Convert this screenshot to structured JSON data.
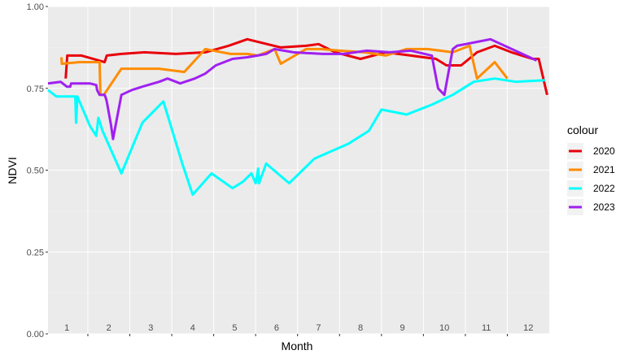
{
  "chart_data": {
    "type": "line",
    "xlabel": "Month",
    "ylabel": "NDVI",
    "xlim": [
      0.55,
      12.5
    ],
    "ylim": [
      0,
      1
    ],
    "y_ticks": [
      0.0,
      0.25,
      0.5,
      0.75,
      1.0
    ],
    "y_tick_labels": [
      "0.00",
      "0.25",
      "0.50",
      "0.75",
      "1.00"
    ],
    "x_ticks": [
      1,
      2,
      3,
      4,
      5,
      6,
      7,
      8,
      9,
      10,
      11,
      12
    ],
    "x_tick_labels": [
      "1",
      "2",
      "3",
      "4",
      "5",
      "6",
      "7",
      "8",
      "9",
      "10",
      "11",
      "12"
    ],
    "grid": true,
    "legend": {
      "title": "colour",
      "position": "right"
    },
    "series": [
      {
        "name": "2020",
        "color": "#e8000b",
        "x": [
          0.97,
          1.01,
          1.35,
          1.9,
          1.95,
          2.3,
          2.85,
          3.6,
          4.3,
          4.85,
          5.3,
          6.1,
          6.7,
          7.0,
          7.4,
          8.0,
          8.6,
          9.2,
          9.8,
          10.05,
          10.4,
          10.78,
          11.2,
          11.6,
          12.1,
          12.25,
          12.45
        ],
        "y": [
          0.78,
          0.85,
          0.85,
          0.83,
          0.85,
          0.855,
          0.86,
          0.855,
          0.86,
          0.88,
          0.9,
          0.875,
          0.88,
          0.885,
          0.86,
          0.84,
          0.86,
          0.85,
          0.84,
          0.82,
          0.82,
          0.86,
          0.88,
          0.86,
          0.84,
          0.84,
          0.73
        ]
      },
      {
        "name": "2021",
        "color": "#ff8c00",
        "x": [
          0.87,
          0.88,
          1.3,
          1.78,
          1.8,
          1.88,
          2.3,
          3.2,
          3.8,
          4.3,
          4.9,
          5.3,
          5.55,
          5.95,
          6.1,
          6.7,
          7.05,
          7.5,
          8.1,
          8.6,
          9.1,
          9.6,
          10.2,
          10.6,
          10.78,
          11.2,
          11.5
        ],
        "y": [
          0.845,
          0.825,
          0.83,
          0.83,
          0.73,
          0.73,
          0.81,
          0.81,
          0.8,
          0.87,
          0.855,
          0.855,
          0.85,
          0.87,
          0.825,
          0.87,
          0.87,
          0.865,
          0.86,
          0.85,
          0.87,
          0.87,
          0.86,
          0.88,
          0.78,
          0.83,
          0.78
        ]
      },
      {
        "name": "2022",
        "color": "#00ffff",
        "x": [
          0.55,
          0.75,
          1.2,
          1.22,
          1.25,
          1.55,
          1.7,
          1.75,
          1.85,
          2.3,
          2.8,
          3.3,
          3.75,
          4.0,
          4.45,
          4.95,
          5.2,
          5.4,
          5.5,
          5.56,
          5.58,
          5.75,
          6.3,
          6.9,
          7.7,
          8.2,
          8.5,
          9.1,
          9.7,
          10.2,
          10.7,
          11.2,
          11.7,
          12.4
        ],
        "y": [
          0.745,
          0.725,
          0.725,
          0.645,
          0.725,
          0.635,
          0.605,
          0.66,
          0.62,
          0.49,
          0.645,
          0.71,
          0.52,
          0.425,
          0.49,
          0.445,
          0.465,
          0.49,
          0.46,
          0.505,
          0.46,
          0.52,
          0.46,
          0.535,
          0.58,
          0.62,
          0.685,
          0.67,
          0.7,
          0.73,
          0.77,
          0.78,
          0.77,
          0.775
        ]
      },
      {
        "name": "2023",
        "color": "#a020f0",
        "x": [
          0.55,
          0.85,
          1.0,
          1.08,
          1.1,
          1.55,
          1.7,
          1.72,
          1.78,
          1.9,
          1.93,
          1.95,
          2.05,
          2.1,
          2.3,
          2.55,
          2.8,
          3.2,
          3.4,
          3.7,
          4.05,
          4.3,
          4.55,
          4.95,
          5.3,
          5.55,
          5.75,
          5.95,
          6.4,
          7.1,
          7.6,
          8.15,
          8.7,
          9.2,
          9.7,
          9.85,
          10.0,
          10.2,
          10.3,
          11.1,
          12.2
        ],
        "y": [
          0.765,
          0.77,
          0.755,
          0.755,
          0.765,
          0.765,
          0.76,
          0.745,
          0.73,
          0.73,
          0.72,
          0.71,
          0.64,
          0.595,
          0.73,
          0.745,
          0.755,
          0.77,
          0.78,
          0.765,
          0.78,
          0.795,
          0.82,
          0.84,
          0.845,
          0.85,
          0.855,
          0.87,
          0.86,
          0.855,
          0.855,
          0.865,
          0.86,
          0.865,
          0.85,
          0.75,
          0.73,
          0.87,
          0.88,
          0.9,
          0.835
        ]
      }
    ]
  }
}
